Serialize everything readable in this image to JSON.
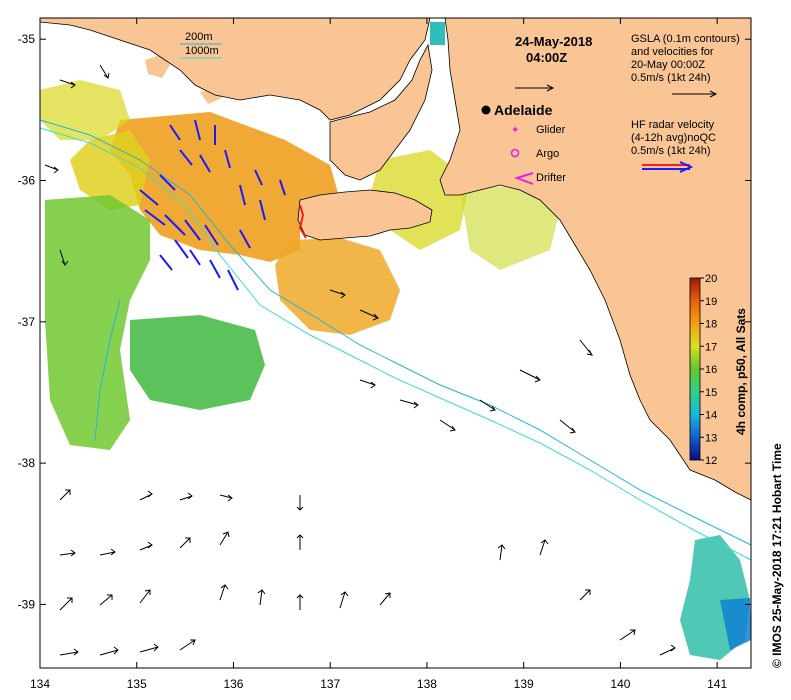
{
  "map": {
    "date_title": "24-May-2018",
    "time_title": "04:00Z",
    "lon_ticks": [
      "134",
      "135",
      "136",
      "137",
      "138",
      "139",
      "140",
      "141"
    ],
    "lat_ticks": [
      "-35",
      "-36",
      "-37",
      "-38",
      "-39"
    ],
    "lon_range": [
      134,
      141.35
    ],
    "lat_range": [
      -39.45,
      -34.85
    ],
    "colors": {
      "land": "#f9c594",
      "isobath_200m": "#1fb8d6",
      "isobath_1000m": "#39e0c8",
      "glider": "#e620e6",
      "argo": "#e620e6",
      "drifter": "#e620e6",
      "hf_radar_red": "#ff1a1a",
      "hf_radar_blue": "#1a1aff",
      "gsla_arrow": "#000000"
    }
  },
  "legend": {
    "isobath_200m": "200m",
    "isobath_1000m": "1000m",
    "city": "Adelaide",
    "glider": "Glider",
    "argo": "Argo",
    "drifter": "Drifter",
    "gsla_line1": "GSLA (0.1m contours)",
    "gsla_line2": "and velocities for",
    "gsla_line3": "20-May 00:00Z",
    "gsla_line4": "0.5m/s (1kt 24h)",
    "hf_line1": "HF radar velocity",
    "hf_line2": "(4-12h avg)noQC",
    "hf_line3": "0.5m/s (1kt 24h)"
  },
  "colorbar": {
    "label": "4h comp, p50, All Sats",
    "ticks": [
      "12",
      "13",
      "14",
      "15",
      "16",
      "17",
      "18",
      "19",
      "20"
    ],
    "min": 12,
    "max": 20,
    "stops": [
      "#0a0a80",
      "#1060d0",
      "#18b8d8",
      "#30d088",
      "#60c830",
      "#d8e020",
      "#f4a010",
      "#e86010",
      "#a01808"
    ]
  },
  "credit": "© IMOS 25-May-2018 17:21 Hobart Time"
}
